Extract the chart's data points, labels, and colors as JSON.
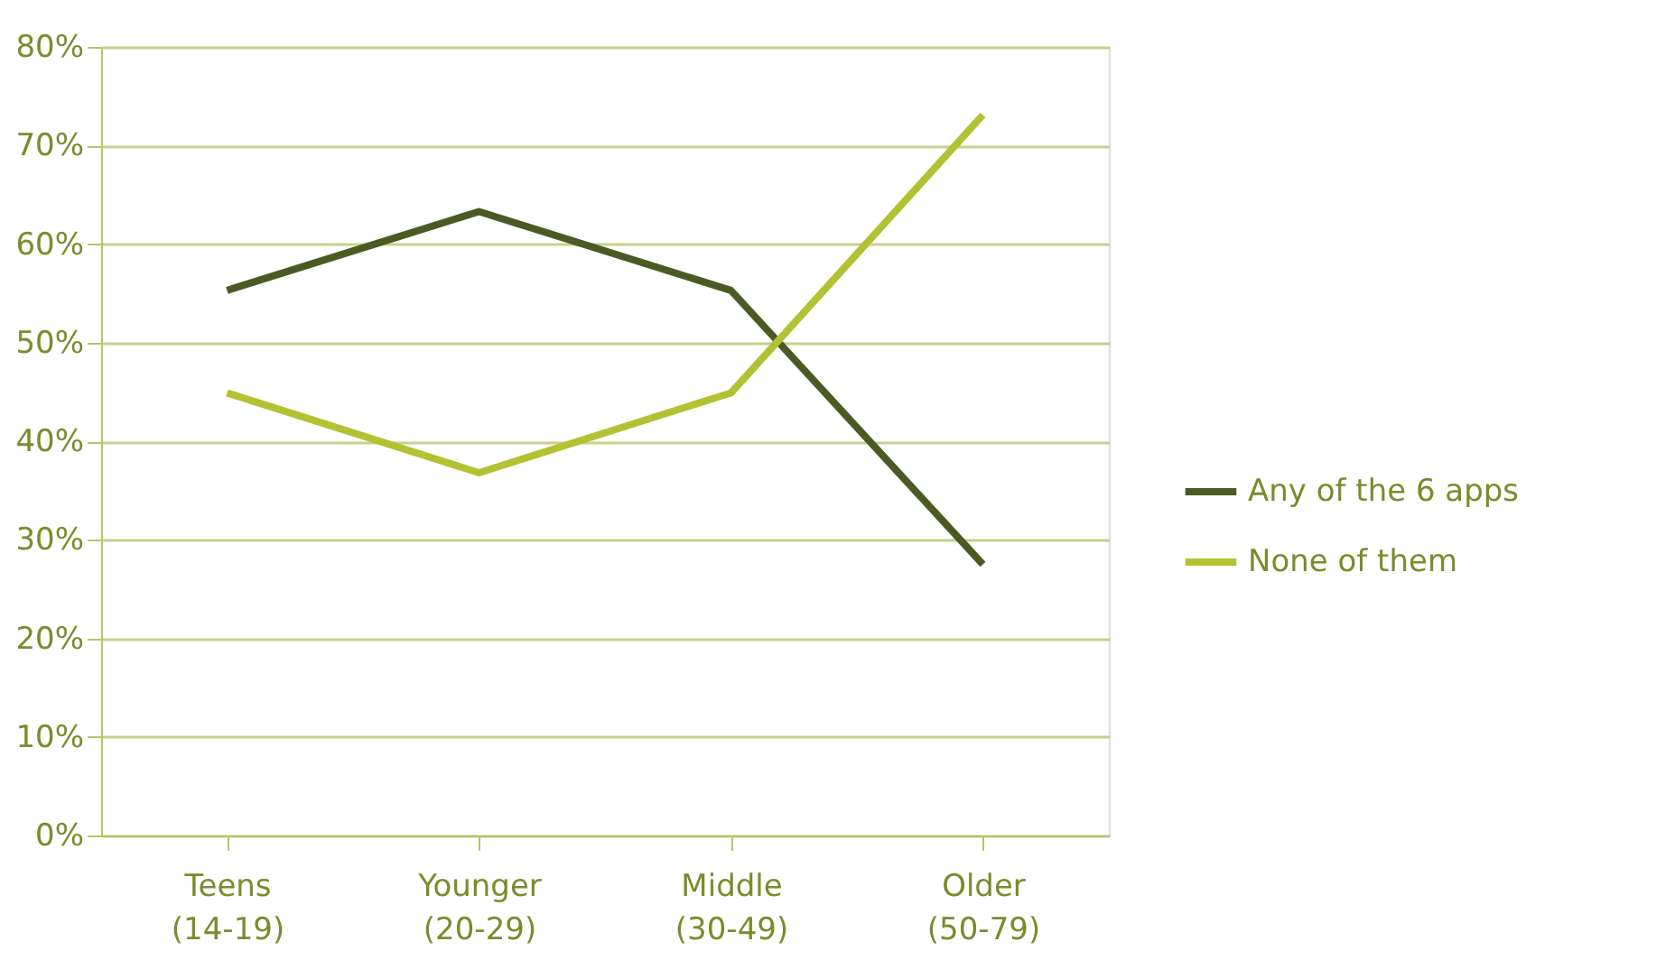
{
  "chart_data": {
    "type": "line",
    "categories": [
      "Teens\n(14-19)",
      "Younger\n(20-29)",
      "Middle\n(30-49)",
      "Older\n(50-79)"
    ],
    "series": [
      {
        "name": "Any of the 6 apps",
        "color": "#4b5a23",
        "values": [
          55.3,
          63.3,
          55.3,
          27.5
        ]
      },
      {
        "name": "None of them",
        "color": "#b3c232",
        "values": [
          44.9,
          36.8,
          44.9,
          73.1
        ]
      }
    ],
    "ylim": [
      0,
      80
    ],
    "yticks": [
      {
        "value": 0,
        "label": "0%"
      },
      {
        "value": 10,
        "label": "10%"
      },
      {
        "value": 20,
        "label": "20%"
      },
      {
        "value": 30,
        "label": "30%"
      },
      {
        "value": 40,
        "label": "40%"
      },
      {
        "value": 50,
        "label": "50%"
      },
      {
        "value": 60,
        "label": "60%"
      },
      {
        "value": 70,
        "label": "70%"
      },
      {
        "value": 80,
        "label": "80%"
      }
    ],
    "grid": "y",
    "legend": "right",
    "marker": "none",
    "line_style": "solid"
  }
}
